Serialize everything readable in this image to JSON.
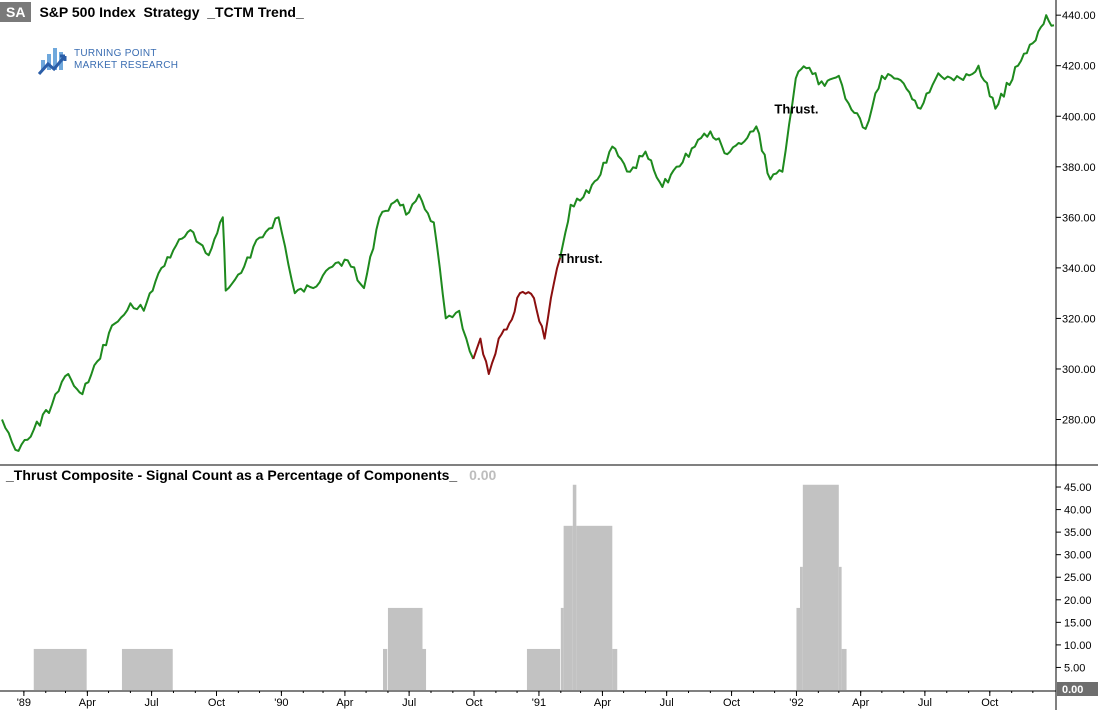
{
  "header": {
    "symbol_badge": "SA",
    "title": "S&P 500 Index  Strategy  _TCTM Trend_"
  },
  "logo": {
    "line1": "TURNING POINT",
    "line2": "MARKET RESEARCH"
  },
  "colors": {
    "up_trend": "#1e8a1e",
    "down_trend": "#8b0f0f",
    "indicator_bars": "#c2c2c2",
    "logo_blue": "#3a6db2"
  },
  "indicator": {
    "title": "_Thrust Composite - Signal Count as a Percentage of Components_",
    "value": "0.00",
    "axis_value_label": "0.00"
  },
  "x_axis": {
    "labels": [
      "'89",
      "Apr",
      "Jul",
      "Oct",
      "'90",
      "Apr",
      "Jul",
      "Oct",
      "'91",
      "Apr",
      "Jul",
      "Oct",
      "'92",
      "Apr",
      "Jul",
      "Oct"
    ]
  },
  "chart_data": [
    {
      "type": "line",
      "title": "S&P 500 Index  Strategy  _TCTM Trend_",
      "y_ticks": [
        "280.00",
        "300.00",
        "320.00",
        "340.00",
        "360.00",
        "380.00",
        "400.00",
        "420.00",
        "440.00"
      ],
      "ylim": [
        262,
        446
      ],
      "x_range": [
        "1988-12-01",
        "1992-12-31"
      ],
      "grid": false,
      "series": [
        {
          "trend": "up",
          "points": [
            [
              "1988-12-01",
              280
            ],
            [
              "1988-12-20",
              268
            ],
            [
              "1989-01-15",
              276
            ],
            [
              "1989-02-10",
              286
            ],
            [
              "1989-03-05",
              298
            ],
            [
              "1989-03-25",
              290
            ],
            [
              "1989-04-15",
              303
            ],
            [
              "1989-05-10",
              318
            ],
            [
              "1989-06-01",
              326
            ],
            [
              "1989-06-20",
              323
            ],
            [
              "1989-07-15",
              340
            ],
            [
              "1989-08-05",
              349
            ],
            [
              "1989-08-25",
              355
            ],
            [
              "1989-09-20",
              345
            ],
            [
              "1989-10-10",
              360
            ],
            [
              "1989-10-14",
              331
            ],
            [
              "1989-11-05",
              338
            ],
            [
              "1989-12-01",
              352
            ],
            [
              "1989-12-28",
              360
            ],
            [
              "1990-01-20",
              330
            ],
            [
              "1990-02-15",
              332
            ],
            [
              "1990-03-10",
              340
            ],
            [
              "1990-04-05",
              343
            ],
            [
              "1990-04-28",
              332
            ],
            [
              "1990-05-20",
              360
            ],
            [
              "1990-06-10",
              366
            ],
            [
              "1990-07-01",
              362
            ],
            [
              "1990-07-15",
              369
            ],
            [
              "1990-08-05",
              358
            ],
            [
              "1990-08-22",
              320
            ],
            [
              "1990-09-10",
              323
            ],
            [
              "1990-09-20",
              312
            ],
            [
              "1990-09-30",
              304
            ]
          ]
        },
        {
          "trend": "down",
          "points": [
            [
              "1990-09-30",
              304
            ],
            [
              "1990-10-10",
              312
            ],
            [
              "1990-10-22",
              298
            ],
            [
              "1990-11-05",
              312
            ],
            [
              "1990-11-20",
              318
            ],
            [
              "1990-12-05",
              330
            ],
            [
              "1990-12-25",
              328
            ],
            [
              "1991-01-09",
              312
            ],
            [
              "1991-01-18",
              328
            ],
            [
              "1991-01-31",
              344
            ]
          ]
        },
        {
          "trend": "up",
          "points": [
            [
              "1991-01-31",
              344
            ],
            [
              "1991-02-15",
              365
            ],
            [
              "1991-03-05",
              368
            ],
            [
              "1991-03-25",
              375
            ],
            [
              "1991-04-15",
              388
            ],
            [
              "1991-05-10",
              378
            ],
            [
              "1991-06-01",
              386
            ],
            [
              "1991-06-25",
              372
            ],
            [
              "1991-07-15",
              380
            ],
            [
              "1991-08-10",
              388
            ],
            [
              "1991-09-01",
              394
            ],
            [
              "1991-09-25",
              385
            ],
            [
              "1991-10-15",
              389
            ],
            [
              "1991-11-05",
              396
            ],
            [
              "1991-11-25",
              375
            ],
            [
              "1991-12-12",
              378
            ],
            [
              "1991-12-31",
              415
            ],
            [
              "1992-01-15",
              419
            ],
            [
              "1992-02-10",
              412
            ],
            [
              "1992-03-01",
              416
            ],
            [
              "1992-03-15",
              405
            ],
            [
              "1992-04-08",
              395
            ],
            [
              "1992-05-01",
              416
            ],
            [
              "1992-06-01",
              413
            ],
            [
              "1992-06-25",
              403
            ],
            [
              "1992-07-20",
              417
            ],
            [
              "1992-08-20",
              415
            ],
            [
              "1992-09-15",
              420
            ],
            [
              "1992-10-09",
              403
            ],
            [
              "1992-11-10",
              420
            ],
            [
              "1992-12-05",
              430
            ],
            [
              "1992-12-20",
              440
            ],
            [
              "1992-12-31",
              436
            ]
          ]
        }
      ],
      "annotations": [
        {
          "text": "Thrust.",
          "x": "1991-03-01",
          "y": 342
        },
        {
          "text": "Thrust.",
          "x": "1992-01-01",
          "y": 401
        }
      ]
    },
    {
      "type": "bar",
      "title": "_Thrust Composite - Signal Count as a Percentage of Components_",
      "y_ticks": [
        "5.00",
        "10.00",
        "15.00",
        "20.00",
        "25.00",
        "30.00",
        "35.00",
        "40.00",
        "45.00"
      ],
      "ylim": [
        0,
        47
      ],
      "bars": [
        {
          "start": "1989-01-15",
          "end": "1989-03-31",
          "value": 9.1
        },
        {
          "start": "1989-05-20",
          "end": "1989-07-31",
          "value": 9.1
        },
        {
          "start": "1990-05-25",
          "end": "1990-05-31",
          "value": 9.1
        },
        {
          "start": "1990-06-01",
          "end": "1990-07-20",
          "value": 18.2
        },
        {
          "start": "1990-07-20",
          "end": "1990-07-25",
          "value": 9.1
        },
        {
          "start": "1990-12-15",
          "end": "1991-01-31",
          "value": 9.1
        },
        {
          "start": "1991-02-01",
          "end": "1991-02-05",
          "value": 18.2
        },
        {
          "start": "1991-02-05",
          "end": "1991-02-18",
          "value": 36.4
        },
        {
          "start": "1991-02-18",
          "end": "1991-02-23",
          "value": 45.5
        },
        {
          "start": "1991-02-23",
          "end": "1991-04-15",
          "value": 36.4
        },
        {
          "start": "1991-04-15",
          "end": "1991-04-22",
          "value": 9.1
        },
        {
          "start": "1992-01-01",
          "end": "1992-01-06",
          "value": 18.2
        },
        {
          "start": "1992-01-06",
          "end": "1992-01-10",
          "value": 27.3
        },
        {
          "start": "1992-01-10",
          "end": "1992-03-01",
          "value": 45.5
        },
        {
          "start": "1992-03-01",
          "end": "1992-03-05",
          "value": 27.3
        },
        {
          "start": "1992-03-05",
          "end": "1992-03-12",
          "value": 9.1
        }
      ]
    }
  ]
}
